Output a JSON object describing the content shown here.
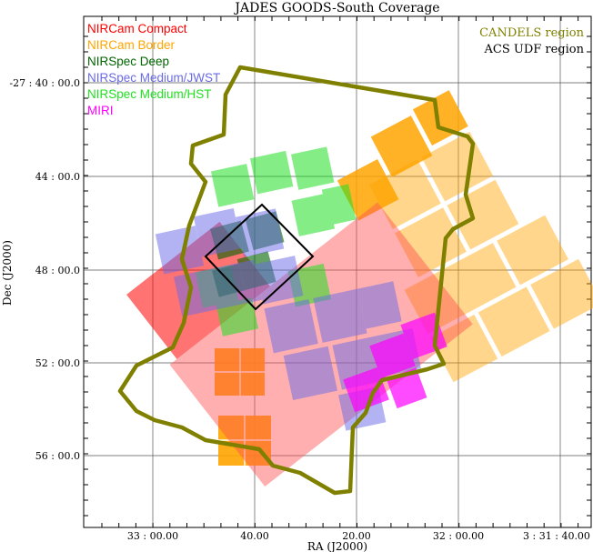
{
  "title": "JADES GOODS-South Coverage",
  "axes": {
    "xlabel": "RA (J2000)",
    "ylabel": "Dec (J2000)",
    "xticks": [
      "33 : 00.00",
      "40.00",
      "20.00",
      "32 : 00.00",
      "3 : 31 : 40.00"
    ],
    "yticks": [
      "-27 : 40 : 00.0",
      "44 : 00.0",
      "48 : 00.0",
      "52 : 00.0",
      "56 : 00.0"
    ]
  },
  "legend": [
    {
      "label": "NIRCam Compact",
      "color": "#ff0000"
    },
    {
      "label": "NIRCam Border",
      "color": "#ffa500"
    },
    {
      "label": "NIRSpec Deep",
      "color": "#006400"
    },
    {
      "label": "NIRSpec Medium/JWST",
      "color": "#6a6ae8"
    },
    {
      "label": "NIRSpec Medium/HST",
      "color": "#22e022"
    },
    {
      "label": "MIRI",
      "color": "#ff00ff"
    }
  ],
  "regions": [
    {
      "label": "CANDELS region",
      "color": "#808000"
    },
    {
      "label": "ACS UDF region",
      "color": "#000000"
    }
  ]
}
